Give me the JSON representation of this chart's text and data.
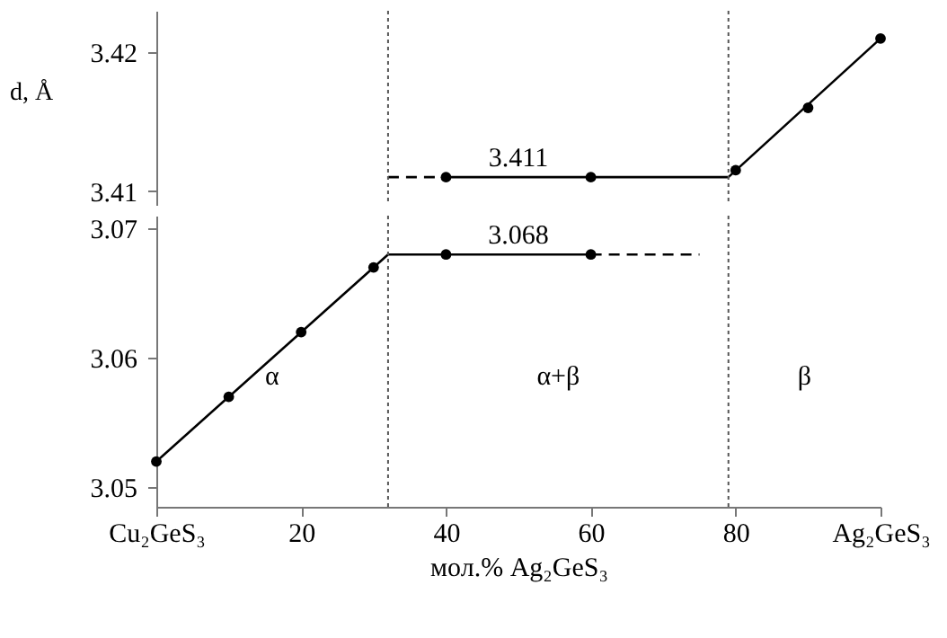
{
  "chart_data": [
    {
      "type": "line",
      "ylabel": "d, Å",
      "xlim": [
        0,
        100
      ],
      "ylim": [
        3.409,
        3.423
      ],
      "yticks": [
        3.41,
        3.42
      ],
      "tick_labels": "y",
      "grid": false,
      "series": [
        {
          "type": "line",
          "x": [
            40,
            79,
            100
          ],
          "values": [
            3.411,
            3.411,
            3.421
          ],
          "color": "#000000",
          "line_style": "solid",
          "marker": "none"
        },
        {
          "type": "line",
          "x": [
            32,
            40
          ],
          "values": [
            3.411,
            3.411
          ],
          "color": "#000000",
          "line_style": "dashed",
          "marker": "none"
        },
        {
          "type": "scatter",
          "x": [
            40,
            60,
            80,
            90,
            100
          ],
          "values": [
            3.411,
            3.411,
            3.4115,
            3.416,
            3.421
          ],
          "color": "#000000",
          "marker": "circle"
        }
      ],
      "ref_lines": [
        {
          "axis": "x",
          "value": 32,
          "color": "#555555",
          "line_style": "dotted"
        },
        {
          "axis": "x",
          "value": 79,
          "color": "#555555",
          "line_style": "dotted"
        }
      ],
      "annotations": [
        {
          "text": "3.411",
          "x": 50,
          "y": 3.411
        }
      ]
    },
    {
      "type": "line",
      "xlabel": "мол.% Ag₂GeS₃",
      "xlim": [
        0,
        100
      ],
      "xticks": [
        {
          "value": 0,
          "label": "Cu₂GeS₃"
        },
        20,
        40,
        60,
        80,
        {
          "value": 100,
          "label": "Ag₂GeS₃"
        }
      ],
      "ylim": [
        3.0485,
        3.071
      ],
      "yticks": [
        3.05,
        3.06,
        3.07
      ],
      "grid": false,
      "series": [
        {
          "type": "line",
          "x": [
            0,
            32,
            60
          ],
          "values": [
            3.052,
            3.068,
            3.068
          ],
          "color": "#000000",
          "line_style": "solid",
          "marker": "none"
        },
        {
          "type": "line",
          "x": [
            60,
            75
          ],
          "values": [
            3.068,
            3.068
          ],
          "color": "#000000",
          "line_style": "dashed",
          "marker": "none"
        },
        {
          "type": "scatter",
          "x": [
            0,
            10,
            20,
            30,
            40,
            60
          ],
          "values": [
            3.052,
            3.057,
            3.062,
            3.067,
            3.068,
            3.068
          ],
          "color": "#000000",
          "marker": "circle"
        }
      ],
      "ref_lines": [
        {
          "axis": "x",
          "value": 32,
          "color": "#555555",
          "line_style": "dotted"
        },
        {
          "axis": "x",
          "value": 79,
          "color": "#555555",
          "line_style": "dotted"
        }
      ],
      "annotations": [
        {
          "text": "3.068",
          "x": 50,
          "y": 3.068
        },
        "α",
        "α+β",
        "β"
      ]
    }
  ]
}
